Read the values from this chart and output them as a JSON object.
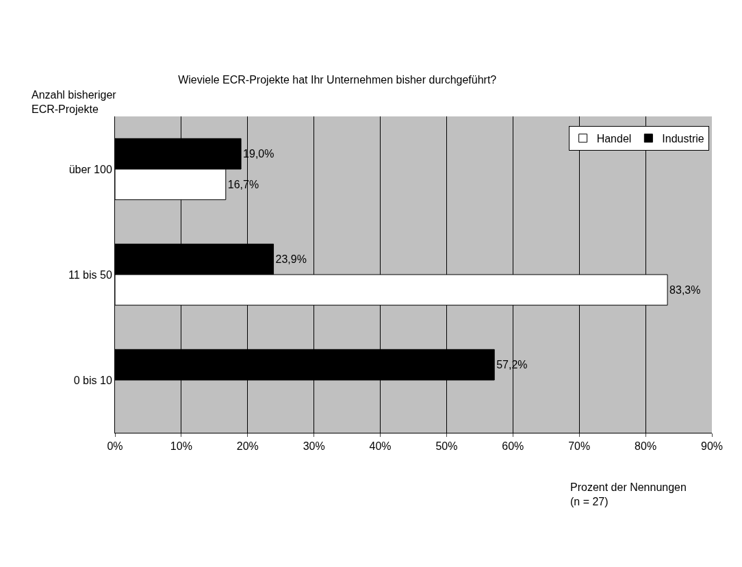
{
  "chart_data": {
    "type": "bar",
    "orientation": "horizontal",
    "title": "Wieviele ECR-Projekte hat Ihr Unternehmen bisher durchgeführt?",
    "ylabel": "Anzahl bisheriger ECR-Projekte",
    "xlabel": "Prozent der Nennungen (n = 27)",
    "categories": [
      "über 100",
      "11 bis 50",
      "0 bis 10"
    ],
    "series": [
      {
        "name": "Handel",
        "color": "#ffffff",
        "values": [
          16.7,
          83.3,
          null
        ],
        "value_labels": [
          "16,7%",
          "83,3%",
          null
        ]
      },
      {
        "name": "Industrie",
        "color": "#000000",
        "values": [
          19.0,
          23.9,
          57.2
        ],
        "value_labels": [
          "19,0%",
          "23,9%",
          "57,2%"
        ]
      }
    ],
    "xlim": [
      0,
      90
    ],
    "xticks": [
      {
        "value": 0,
        "label": "0%"
      },
      {
        "value": 10,
        "label": "10%"
      },
      {
        "value": 20,
        "label": "20%"
      },
      {
        "value": 30,
        "label": "30%"
      },
      {
        "value": 40,
        "label": "40%"
      },
      {
        "value": 50,
        "label": "50%"
      },
      {
        "value": 60,
        "label": "60%"
      },
      {
        "value": 70,
        "label": "70%"
      },
      {
        "value": 80,
        "label": "80%"
      },
      {
        "value": 90,
        "label": "90%"
      }
    ],
    "grid": "x",
    "legend": "top right"
  }
}
